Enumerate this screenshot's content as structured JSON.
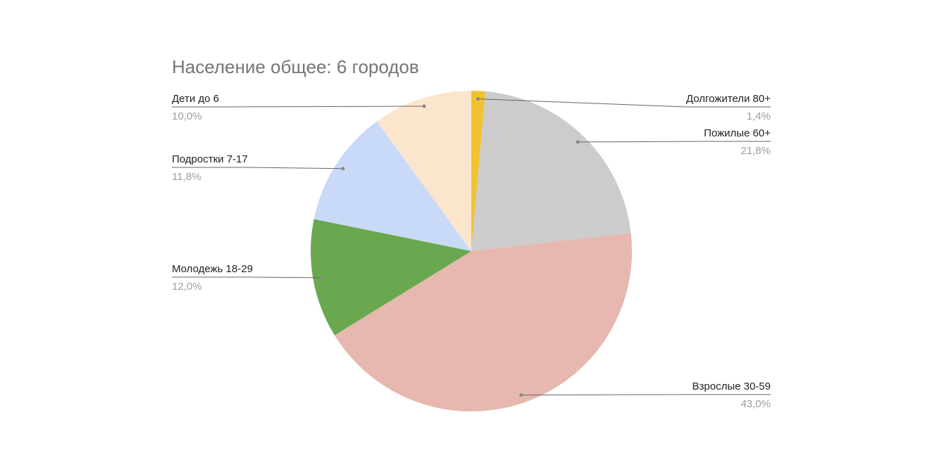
{
  "chart_data": {
    "type": "pie",
    "title": "Население общее: 6 городов",
    "categories": [
      "Долгожители 80+",
      "Пожилые 60+",
      "Взрослые 30-59",
      "Молодежь 18-29",
      "Подростки 7-17",
      "Дети до 6"
    ],
    "values": [
      1.4,
      21.8,
      43.0,
      12.0,
      11.8,
      10.0
    ],
    "value_labels": [
      "1,4%",
      "21,8%",
      "43,0%",
      "12,0%",
      "11,8%",
      "10,0%"
    ],
    "colors": [
      "#f1c232",
      "#cccccc",
      "#e6b8af",
      "#6aa84f",
      "#c9daf8",
      "#fce5cd"
    ]
  }
}
